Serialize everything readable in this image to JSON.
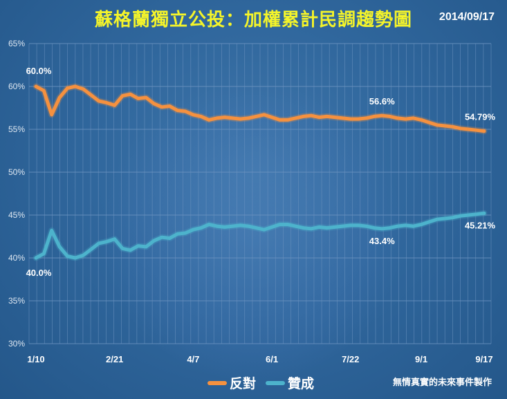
{
  "header": {
    "title": "蘇格蘭獨立公投：加權累計民調趨勢圖",
    "date": "2014/09/17"
  },
  "footer": {
    "credit": "無情真實的未來事件製作"
  },
  "colors": {
    "oppose": "#f5913f",
    "support": "#4db3cc",
    "grid": "#6c93bf",
    "text": "#ffffff"
  },
  "chart_data": {
    "type": "line",
    "title": "蘇格蘭獨立公投：加權累計民調趨勢圖",
    "xlabel": "",
    "ylabel": "",
    "ylim": [
      30,
      65
    ],
    "y_ticks": [
      "30%",
      "35%",
      "40%",
      "45%",
      "50%",
      "55%",
      "60%",
      "65%"
    ],
    "x_ticks": [
      "1/10",
      "2/21",
      "4/7",
      "6/1",
      "7/22",
      "9/1",
      "9/17"
    ],
    "grid": true,
    "legend_position": "bottom",
    "series": [
      {
        "name": "反對",
        "color": "#f5913f",
        "values": [
          60.0,
          59.5,
          56.7,
          58.7,
          59.8,
          60.0,
          59.7,
          59.0,
          58.3,
          58.1,
          57.8,
          58.9,
          59.1,
          58.6,
          58.7,
          58.0,
          57.6,
          57.7,
          57.2,
          57.1,
          56.7,
          56.5,
          56.1,
          56.3,
          56.4,
          56.3,
          56.2,
          56.3,
          56.5,
          56.7,
          56.4,
          56.1,
          56.1,
          56.3,
          56.5,
          56.6,
          56.4,
          56.5,
          56.4,
          56.3,
          56.2,
          56.2,
          56.3,
          56.5,
          56.6,
          56.5,
          56.3,
          56.2,
          56.3,
          56.1,
          55.8,
          55.5,
          55.4,
          55.3,
          55.1,
          55.0,
          54.9,
          54.79
        ],
        "annotations": [
          {
            "index": 0,
            "label": "60.0%"
          },
          {
            "index": 44,
            "label": "56.6%"
          },
          {
            "index": 57,
            "label": "54.79%"
          }
        ]
      },
      {
        "name": "贊成",
        "color": "#4db3cc",
        "values": [
          40.0,
          40.5,
          43.2,
          41.3,
          40.2,
          40.0,
          40.3,
          41.0,
          41.7,
          41.9,
          42.2,
          41.1,
          40.9,
          41.4,
          41.3,
          42.0,
          42.4,
          42.3,
          42.8,
          42.9,
          43.3,
          43.5,
          43.9,
          43.7,
          43.6,
          43.7,
          43.8,
          43.7,
          43.5,
          43.3,
          43.6,
          43.9,
          43.9,
          43.7,
          43.5,
          43.4,
          43.6,
          43.5,
          43.6,
          43.7,
          43.8,
          43.8,
          43.7,
          43.5,
          43.4,
          43.5,
          43.7,
          43.8,
          43.7,
          43.9,
          44.2,
          44.5,
          44.6,
          44.7,
          44.9,
          45.0,
          45.1,
          45.21
        ],
        "annotations": [
          {
            "index": 0,
            "label": "40.0%"
          },
          {
            "index": 44,
            "label": "43.4%"
          },
          {
            "index": 57,
            "label": "45.21%"
          }
        ]
      }
    ]
  }
}
